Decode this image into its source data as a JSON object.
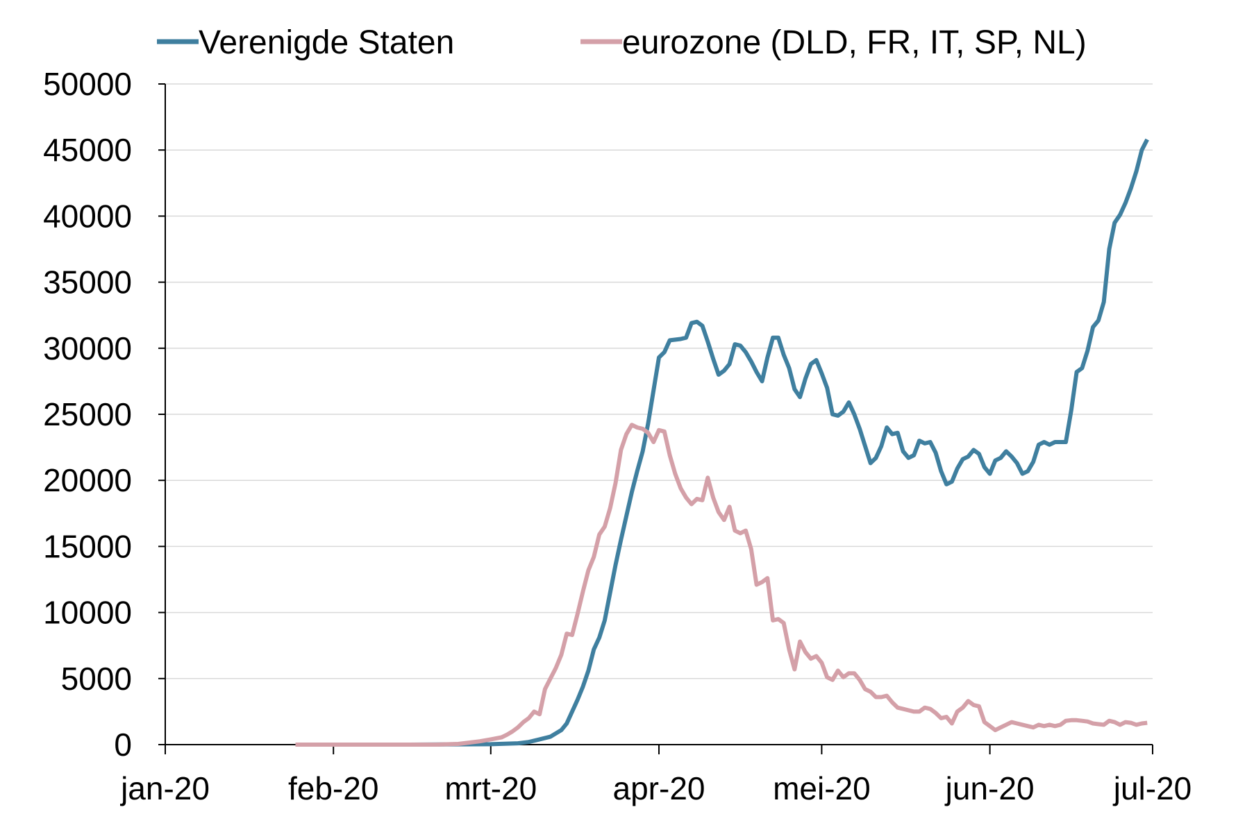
{
  "chart_data": {
    "type": "line",
    "title": "",
    "xlabel": "",
    "ylabel": "",
    "ylim": [
      0,
      50000
    ],
    "y_ticks": [
      "0",
      "5000",
      "10000",
      "15000",
      "20000",
      "25000",
      "30000",
      "35000",
      "40000",
      "45000",
      "50000"
    ],
    "x_ticks": [
      {
        "label": "jan-20",
        "date": "2020-01-01"
      },
      {
        "label": "feb-20",
        "date": "2020-02-01"
      },
      {
        "label": "mrt-20",
        "date": "2020-03-01"
      },
      {
        "label": "apr-20",
        "date": "2020-04-01"
      },
      {
        "label": "mei-20",
        "date": "2020-05-01"
      },
      {
        "label": "jun-20",
        "date": "2020-06-01"
      },
      {
        "label": "jul-20",
        "date": "2020-07-01"
      }
    ],
    "xlim": [
      "2020-01-01",
      "2020-07-01"
    ],
    "grid": "horizontal",
    "legend": "top",
    "series": [
      {
        "name": "Verenigde Staten",
        "color": "#3f7f9f",
        "points": [
          [
            "2020-01-25",
            0
          ],
          [
            "2020-02-15",
            0
          ],
          [
            "2020-03-01",
            30
          ],
          [
            "2020-03-06",
            100
          ],
          [
            "2020-03-08",
            200
          ],
          [
            "2020-03-10",
            400
          ],
          [
            "2020-03-12",
            600
          ],
          [
            "2020-03-14",
            1100
          ],
          [
            "2020-03-15",
            1600
          ],
          [
            "2020-03-16",
            2500
          ],
          [
            "2020-03-17",
            3400
          ],
          [
            "2020-03-18",
            4400
          ],
          [
            "2020-03-19",
            5600
          ],
          [
            "2020-03-20",
            7200
          ],
          [
            "2020-03-21",
            8100
          ],
          [
            "2020-03-22",
            9400
          ],
          [
            "2020-03-23",
            11500
          ],
          [
            "2020-03-24",
            13600
          ],
          [
            "2020-03-25",
            15500
          ],
          [
            "2020-03-26",
            17300
          ],
          [
            "2020-03-27",
            19100
          ],
          [
            "2020-03-28",
            20700
          ],
          [
            "2020-03-29",
            22200
          ],
          [
            "2020-03-30",
            24300
          ],
          [
            "2020-03-31",
            26800
          ],
          [
            "2020-04-01",
            29300
          ],
          [
            "2020-04-02",
            29700
          ],
          [
            "2020-04-03",
            30600
          ],
          [
            "2020-04-05",
            30700
          ],
          [
            "2020-04-06",
            30800
          ],
          [
            "2020-04-07",
            31900
          ],
          [
            "2020-04-08",
            32000
          ],
          [
            "2020-04-09",
            31700
          ],
          [
            "2020-04-10",
            30500
          ],
          [
            "2020-04-11",
            29200
          ],
          [
            "2020-04-12",
            28000
          ],
          [
            "2020-04-13",
            28300
          ],
          [
            "2020-04-14",
            28800
          ],
          [
            "2020-04-15",
            30300
          ],
          [
            "2020-04-16",
            30200
          ],
          [
            "2020-04-17",
            29700
          ],
          [
            "2020-04-18",
            29000
          ],
          [
            "2020-04-19",
            28200
          ],
          [
            "2020-04-20",
            27500
          ],
          [
            "2020-04-21",
            29300
          ],
          [
            "2020-04-22",
            30800
          ],
          [
            "2020-04-23",
            30800
          ],
          [
            "2020-04-24",
            29500
          ],
          [
            "2020-04-25",
            28500
          ],
          [
            "2020-04-26",
            26900
          ],
          [
            "2020-04-27",
            26300
          ],
          [
            "2020-04-28",
            27700
          ],
          [
            "2020-04-29",
            28800
          ],
          [
            "2020-04-30",
            29100
          ],
          [
            "2020-05-01",
            28100
          ],
          [
            "2020-05-02",
            27000
          ],
          [
            "2020-05-03",
            25000
          ],
          [
            "2020-05-04",
            24900
          ],
          [
            "2020-05-05",
            25200
          ],
          [
            "2020-05-06",
            25900
          ],
          [
            "2020-05-07",
            25000
          ],
          [
            "2020-05-08",
            23900
          ],
          [
            "2020-05-09",
            22600
          ],
          [
            "2020-05-10",
            21300
          ],
          [
            "2020-05-11",
            21700
          ],
          [
            "2020-05-12",
            22600
          ],
          [
            "2020-05-13",
            24000
          ],
          [
            "2020-05-14",
            23500
          ],
          [
            "2020-05-15",
            23600
          ],
          [
            "2020-05-16",
            22200
          ],
          [
            "2020-05-17",
            21700
          ],
          [
            "2020-05-18",
            21900
          ],
          [
            "2020-05-19",
            23000
          ],
          [
            "2020-05-20",
            22800
          ],
          [
            "2020-05-21",
            22900
          ],
          [
            "2020-05-22",
            22100
          ],
          [
            "2020-05-23",
            20700
          ],
          [
            "2020-05-24",
            19700
          ],
          [
            "2020-05-25",
            19900
          ],
          [
            "2020-05-26",
            20900
          ],
          [
            "2020-05-27",
            21600
          ],
          [
            "2020-05-28",
            21800
          ],
          [
            "2020-05-29",
            22300
          ],
          [
            "2020-05-30",
            22000
          ],
          [
            "2020-05-31",
            21000
          ],
          [
            "2020-06-01",
            20500
          ],
          [
            "2020-06-02",
            21500
          ],
          [
            "2020-06-03",
            21700
          ],
          [
            "2020-06-04",
            22200
          ],
          [
            "2020-06-05",
            21800
          ],
          [
            "2020-06-06",
            21300
          ],
          [
            "2020-06-07",
            20500
          ],
          [
            "2020-06-08",
            20700
          ],
          [
            "2020-06-09",
            21400
          ],
          [
            "2020-06-10",
            22700
          ],
          [
            "2020-06-11",
            22900
          ],
          [
            "2020-06-12",
            22700
          ],
          [
            "2020-06-13",
            22900
          ],
          [
            "2020-06-15",
            22900
          ],
          [
            "2020-06-16",
            25300
          ],
          [
            "2020-06-17",
            28200
          ],
          [
            "2020-06-18",
            28500
          ],
          [
            "2020-06-19",
            29800
          ],
          [
            "2020-06-20",
            31600
          ],
          [
            "2020-06-21",
            32100
          ],
          [
            "2020-06-22",
            33500
          ],
          [
            "2020-06-23",
            37500
          ],
          [
            "2020-06-24",
            39500
          ],
          [
            "2020-06-25",
            40100
          ],
          [
            "2020-06-26",
            41000
          ],
          [
            "2020-06-27",
            42100
          ],
          [
            "2020-06-28",
            43400
          ],
          [
            "2020-06-29",
            45000
          ],
          [
            "2020-06-30",
            45800
          ]
        ]
      },
      {
        "name": "eurozone (DLD, FR, IT, SP, NL)",
        "color": "#d4a0a8",
        "points": [
          [
            "2020-01-25",
            0
          ],
          [
            "2020-02-20",
            0
          ],
          [
            "2020-02-24",
            50
          ],
          [
            "2020-02-26",
            150
          ],
          [
            "2020-02-28",
            250
          ],
          [
            "2020-03-01",
            400
          ],
          [
            "2020-03-03",
            550
          ],
          [
            "2020-03-04",
            750
          ],
          [
            "2020-03-05",
            1000
          ],
          [
            "2020-03-06",
            1300
          ],
          [
            "2020-03-07",
            1700
          ],
          [
            "2020-03-08",
            2000
          ],
          [
            "2020-03-09",
            2500
          ],
          [
            "2020-03-10",
            2300
          ],
          [
            "2020-03-11",
            4200
          ],
          [
            "2020-03-12",
            5000
          ],
          [
            "2020-03-13",
            5800
          ],
          [
            "2020-03-14",
            6800
          ],
          [
            "2020-03-15",
            8400
          ],
          [
            "2020-03-16",
            8300
          ],
          [
            "2020-03-17",
            9900
          ],
          [
            "2020-03-18",
            11600
          ],
          [
            "2020-03-19",
            13200
          ],
          [
            "2020-03-20",
            14200
          ],
          [
            "2020-03-21",
            15900
          ],
          [
            "2020-03-22",
            16500
          ],
          [
            "2020-03-23",
            17900
          ],
          [
            "2020-03-24",
            19800
          ],
          [
            "2020-03-25",
            22300
          ],
          [
            "2020-03-26",
            23500
          ],
          [
            "2020-03-27",
            24200
          ],
          [
            "2020-03-28",
            24000
          ],
          [
            "2020-03-29",
            23900
          ],
          [
            "2020-03-30",
            23600
          ],
          [
            "2020-03-31",
            22900
          ],
          [
            "2020-04-01",
            23800
          ],
          [
            "2020-04-02",
            23700
          ],
          [
            "2020-04-03",
            21900
          ],
          [
            "2020-04-04",
            20500
          ],
          [
            "2020-04-05",
            19400
          ],
          [
            "2020-04-06",
            18700
          ],
          [
            "2020-04-07",
            18200
          ],
          [
            "2020-04-08",
            18600
          ],
          [
            "2020-04-09",
            18500
          ],
          [
            "2020-04-10",
            20200
          ],
          [
            "2020-04-11",
            18700
          ],
          [
            "2020-04-12",
            17600
          ],
          [
            "2020-04-13",
            17000
          ],
          [
            "2020-04-14",
            18000
          ],
          [
            "2020-04-15",
            16200
          ],
          [
            "2020-04-16",
            16000
          ],
          [
            "2020-04-17",
            16200
          ],
          [
            "2020-04-18",
            14800
          ],
          [
            "2020-04-19",
            12100
          ],
          [
            "2020-04-20",
            12300
          ],
          [
            "2020-04-21",
            12600
          ],
          [
            "2020-04-22",
            9400
          ],
          [
            "2020-04-23",
            9500
          ],
          [
            "2020-04-24",
            9200
          ],
          [
            "2020-04-25",
            7200
          ],
          [
            "2020-04-26",
            5700
          ],
          [
            "2020-04-27",
            7800
          ],
          [
            "2020-04-28",
            7000
          ],
          [
            "2020-04-29",
            6500
          ],
          [
            "2020-04-30",
            6700
          ],
          [
            "2020-05-01",
            6200
          ],
          [
            "2020-05-02",
            5100
          ],
          [
            "2020-05-03",
            4900
          ],
          [
            "2020-05-04",
            5600
          ],
          [
            "2020-05-05",
            5100
          ],
          [
            "2020-05-06",
            5400
          ],
          [
            "2020-05-07",
            5400
          ],
          [
            "2020-05-08",
            4900
          ],
          [
            "2020-05-09",
            4200
          ],
          [
            "2020-05-10",
            4000
          ],
          [
            "2020-05-11",
            3600
          ],
          [
            "2020-05-12",
            3600
          ],
          [
            "2020-05-13",
            3700
          ],
          [
            "2020-05-14",
            3200
          ],
          [
            "2020-05-15",
            2800
          ],
          [
            "2020-05-16",
            2700
          ],
          [
            "2020-05-17",
            2600
          ],
          [
            "2020-05-18",
            2500
          ],
          [
            "2020-05-19",
            2500
          ],
          [
            "2020-05-20",
            2800
          ],
          [
            "2020-05-21",
            2700
          ],
          [
            "2020-05-22",
            2400
          ],
          [
            "2020-05-23",
            2000
          ],
          [
            "2020-05-24",
            2100
          ],
          [
            "2020-05-25",
            1600
          ],
          [
            "2020-05-26",
            2500
          ],
          [
            "2020-05-27",
            2800
          ],
          [
            "2020-05-28",
            3300
          ],
          [
            "2020-05-29",
            3000
          ],
          [
            "2020-05-30",
            2900
          ],
          [
            "2020-05-31",
            1700
          ],
          [
            "2020-06-01",
            1400
          ],
          [
            "2020-06-02",
            1100
          ],
          [
            "2020-06-03",
            1300
          ],
          [
            "2020-06-04",
            1500
          ],
          [
            "2020-06-05",
            1700
          ],
          [
            "2020-06-06",
            1600
          ],
          [
            "2020-06-07",
            1500
          ],
          [
            "2020-06-08",
            1400
          ],
          [
            "2020-06-09",
            1300
          ],
          [
            "2020-06-10",
            1500
          ],
          [
            "2020-06-11",
            1400
          ],
          [
            "2020-06-12",
            1500
          ],
          [
            "2020-06-13",
            1400
          ],
          [
            "2020-06-14",
            1500
          ],
          [
            "2020-06-15",
            1800
          ],
          [
            "2020-06-16",
            1850
          ],
          [
            "2020-06-17",
            1850
          ],
          [
            "2020-06-18",
            1800
          ],
          [
            "2020-06-19",
            1750
          ],
          [
            "2020-06-20",
            1600
          ],
          [
            "2020-06-21",
            1550
          ],
          [
            "2020-06-22",
            1500
          ],
          [
            "2020-06-23",
            1800
          ],
          [
            "2020-06-24",
            1700
          ],
          [
            "2020-06-25",
            1500
          ],
          [
            "2020-06-26",
            1700
          ],
          [
            "2020-06-27",
            1650
          ],
          [
            "2020-06-28",
            1500
          ],
          [
            "2020-06-29",
            1600
          ],
          [
            "2020-06-30",
            1650
          ]
        ]
      }
    ]
  }
}
